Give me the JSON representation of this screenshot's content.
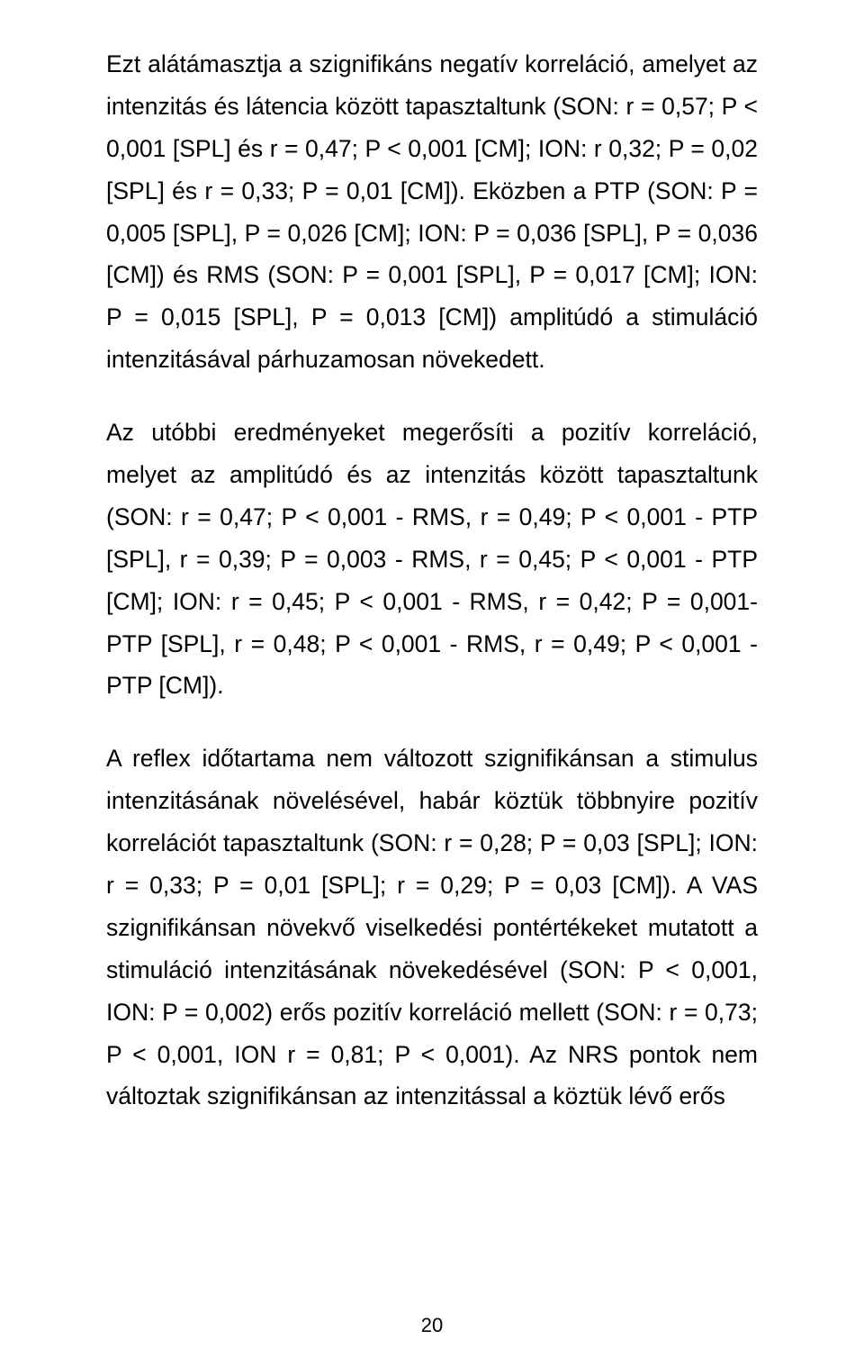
{
  "page": {
    "number": "20",
    "paragraphs": [
      "Ezt alátámasztja a szignifikáns negatív korreláció, amelyet az intenzitás és látencia között tapasztaltunk (SON: r = 0,57; P < 0,001 [SPL] és r = 0,47; P < 0,001 [CM]; ION: r 0,32; P = 0,02 [SPL] és r = 0,33; P = 0,01 [CM]). Eközben a PTP (SON: P = 0,005 [SPL], P = 0,026 [CM]; ION: P = 0,036 [SPL], P = 0,036 [CM]) és RMS (SON: P = 0,001 [SPL], P = 0,017 [CM]; ION: P = 0,015 [SPL], P = 0,013 [CM]) amplitúdó a stimuláció intenzitásával párhuzamosan növekedett.",
      "Az utóbbi eredményeket megerősíti a pozitív korreláció, melyet az amplitúdó és az intenzitás között tapasztaltunk (SON: r = 0,47; P < 0,001 - RMS, r = 0,49; P < 0,001 - PTP [SPL], r = 0,39; P = 0,003 - RMS, r = 0,45; P < 0,001 - PTP [CM]; ION: r = 0,45; P < 0,001 - RMS, r = 0,42; P = 0,001- PTP [SPL], r = 0,48; P < 0,001 - RMS, r = 0,49; P < 0,001 - PTP [CM]).",
      "A reflex időtartama nem változott szignifikánsan a stimulus intenzitásának növelésével, habár köztük többnyire pozitív korrelációt tapasztaltunk (SON: r = 0,28; P = 0,03 [SPL]; ION: r = 0,33; P = 0,01 [SPL]; r = 0,29; P = 0,03 [CM]). A VAS szignifikánsan növekvő viselkedési pontértékeket mutatott a stimuláció intenzitásának növekedésével (SON: P < 0,001, ION: P = 0,002) erős pozitív korreláció mellett (SON: r = 0,73; P < 0,001, ION r = 0,81; P < 0,001). Az NRS pontok nem változtak szignifikánsan az intenzitással a köztük lévő erős"
    ]
  }
}
